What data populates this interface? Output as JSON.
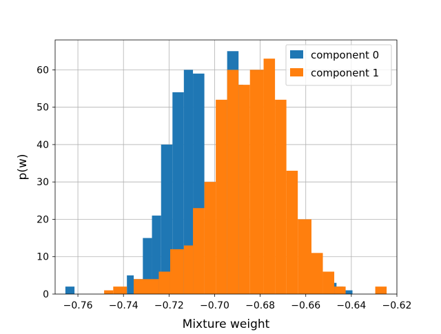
{
  "chart_data": {
    "type": "histogram",
    "title": "",
    "xlabel": "Mixture weight",
    "ylabel": "p(w)",
    "xlim": [
      -0.77,
      -0.62
    ],
    "ylim": [
      0,
      68
    ],
    "xticks": [
      -0.76,
      -0.74,
      -0.72,
      -0.7,
      -0.68,
      -0.66,
      -0.64,
      -0.62
    ],
    "xtick_labels": [
      "−0.76",
      "−0.74",
      "−0.72",
      "−0.70",
      "−0.68",
      "−0.66",
      "−0.64",
      "−0.62"
    ],
    "yticks": [
      0,
      10,
      20,
      30,
      40,
      50,
      60
    ],
    "ytick_labels": [
      "0",
      "10",
      "20",
      "30",
      "40",
      "50",
      "60"
    ],
    "grid": true,
    "legend_position": "top-right",
    "series": [
      {
        "name": "component 0",
        "color": "#1f77b4",
        "bins": [
          {
            "x0": -0.7655,
            "x1": -0.7615,
            "value": 2
          },
          {
            "x0": -0.7385,
            "x1": -0.7355,
            "value": 5
          },
          {
            "x0": -0.7355,
            "x1": -0.7315,
            "value": 4
          },
          {
            "x0": -0.7315,
            "x1": -0.7275,
            "value": 15
          },
          {
            "x0": -0.7275,
            "x1": -0.7235,
            "value": 21
          },
          {
            "x0": -0.7235,
            "x1": -0.7185,
            "value": 40
          },
          {
            "x0": -0.7185,
            "x1": -0.7135,
            "value": 54
          },
          {
            "x0": -0.7135,
            "x1": -0.7095,
            "value": 60
          },
          {
            "x0": -0.7095,
            "x1": -0.7045,
            "value": 59
          },
          {
            "x0": -0.6945,
            "x1": -0.6895,
            "value": 65
          },
          {
            "x0": -0.6895,
            "x1": -0.6875,
            "value": 56
          },
          {
            "x0": -0.6505,
            "x1": -0.6465,
            "value": 3
          },
          {
            "x0": -0.6465,
            "x1": -0.6435,
            "value": 2
          },
          {
            "x0": -0.6435,
            "x1": -0.6395,
            "value": 1
          }
        ]
      },
      {
        "name": "component 1",
        "color": "#ff7f0e",
        "bins": [
          {
            "x0": -0.7485,
            "x1": -0.7445,
            "value": 1
          },
          {
            "x0": -0.7445,
            "x1": -0.7385,
            "value": 2
          },
          {
            "x0": -0.7355,
            "x1": -0.7245,
            "value": 4
          },
          {
            "x0": -0.7245,
            "x1": -0.7195,
            "value": 6
          },
          {
            "x0": -0.7195,
            "x1": -0.7135,
            "value": 12
          },
          {
            "x0": -0.7135,
            "x1": -0.7095,
            "value": 13
          },
          {
            "x0": -0.7095,
            "x1": -0.7045,
            "value": 23
          },
          {
            "x0": -0.7045,
            "x1": -0.6995,
            "value": 30
          },
          {
            "x0": -0.6995,
            "x1": -0.6945,
            "value": 52
          },
          {
            "x0": -0.6945,
            "x1": -0.6895,
            "value": 60
          },
          {
            "x0": -0.6895,
            "x1": -0.6845,
            "value": 56
          },
          {
            "x0": -0.6845,
            "x1": -0.6785,
            "value": 60
          },
          {
            "x0": -0.6785,
            "x1": -0.6735,
            "value": 63
          },
          {
            "x0": -0.6735,
            "x1": -0.6685,
            "value": 52
          },
          {
            "x0": -0.6685,
            "x1": -0.6635,
            "value": 33
          },
          {
            "x0": -0.6635,
            "x1": -0.6575,
            "value": 20
          },
          {
            "x0": -0.6575,
            "x1": -0.6525,
            "value": 11
          },
          {
            "x0": -0.6525,
            "x1": -0.6475,
            "value": 6
          },
          {
            "x0": -0.6475,
            "x1": -0.6425,
            "value": 2
          },
          {
            "x0": -0.6295,
            "x1": -0.6245,
            "value": 2
          }
        ]
      }
    ]
  }
}
